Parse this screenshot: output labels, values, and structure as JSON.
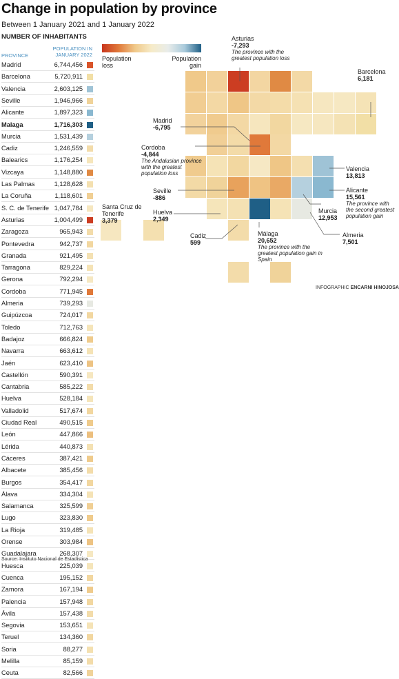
{
  "header": {
    "title": "Change in population by province",
    "subtitle": "Between 1 January 2021 and 1 January 2022",
    "section": "NUMBER OF INHABITANTS"
  },
  "chart_data": [
    {
      "type": "table",
      "columns": [
        "PROVINCE",
        "POPULATION IN JANUARY 2022"
      ],
      "rows": [
        {
          "province": "Madrid",
          "population": "6,744,456",
          "color": "#d9542a"
        },
        {
          "province": "Barcelona",
          "population": "5,720,911",
          "color": "#f2dfa6"
        },
        {
          "province": "Valencia",
          "population": "2,603,125",
          "color": "#9fc3d6"
        },
        {
          "province": "Seville",
          "population": "1,946,966",
          "color": "#f0d39a"
        },
        {
          "province": "Alicante",
          "population": "1,897,323",
          "color": "#8ab8d0"
        },
        {
          "province": "Malaga",
          "population": "1,716,303",
          "color": "#1f5f86",
          "bold": true
        },
        {
          "province": "Murcia",
          "population": "1,531,439",
          "color": "#b5d0de"
        },
        {
          "province": "Cadiz",
          "population": "1,246,559",
          "color": "#f3dcaa"
        },
        {
          "province": "Balearics",
          "population": "1,176,254",
          "color": "#f6e6bb"
        },
        {
          "province": "Vizcaya",
          "population": "1,148,880",
          "color": "#e08a44"
        },
        {
          "province": "Las Palmas",
          "population": "1,128,628",
          "color": "#f4e0b0"
        },
        {
          "province": "La Coruña",
          "population": "1,118,601",
          "color": "#f0cf94"
        },
        {
          "province": "S. C. de Tenerife",
          "population": "1,047,784",
          "color": "#f6e7c0"
        },
        {
          "province": "Asturias",
          "population": "1,004,499",
          "color": "#cc3d22"
        },
        {
          "province": "Zaragoza",
          "population": "965,943",
          "color": "#f3dcaa"
        },
        {
          "province": "Pontevedra",
          "population": "942,737",
          "color": "#f2d7a0"
        },
        {
          "province": "Granada",
          "population": "921,495",
          "color": "#f4e1b3"
        },
        {
          "province": "Tarragona",
          "population": "829,224",
          "color": "#f5e3b6"
        },
        {
          "province": "Gerona",
          "population": "792,294",
          "color": "#f6e8c2"
        },
        {
          "province": "Cordoba",
          "population": "771,945",
          "color": "#e0793a"
        },
        {
          "province": "Almeria",
          "population": "739,293",
          "color": "#e7e9e2"
        },
        {
          "province": "Guipúzcoa",
          "population": "724,017",
          "color": "#f2d7a0"
        },
        {
          "province": "Toledo",
          "population": "712,763",
          "color": "#f5e5ba"
        },
        {
          "province": "Badajoz",
          "population": "666,824",
          "color": "#efcb8c"
        },
        {
          "province": "Navarra",
          "population": "663,612",
          "color": "#f5e3b6"
        },
        {
          "province": "Jaén",
          "population": "623,410",
          "color": "#edc383"
        },
        {
          "province": "Castellón",
          "population": "590,391",
          "color": "#f6e7c0"
        },
        {
          "province": "Cantabria",
          "population": "585,222",
          "color": "#f3dcaa"
        },
        {
          "province": "Huelva",
          "population": "528,184",
          "color": "#f5e5ba"
        },
        {
          "province": "Valladolid",
          "population": "517,674",
          "color": "#f2d7a0"
        },
        {
          "province": "Ciudad Real",
          "population": "490,515",
          "color": "#efcb8c"
        },
        {
          "province": "León",
          "population": "447,866",
          "color": "#ecbf7e"
        },
        {
          "province": "Lérida",
          "population": "440,873",
          "color": "#f4e1b3"
        },
        {
          "province": "Cáceres",
          "population": "387,421",
          "color": "#efcb8c"
        },
        {
          "province": "Albacete",
          "population": "385,456",
          "color": "#f3dcaa"
        },
        {
          "province": "Burgos",
          "population": "354,417",
          "color": "#f2d7a0"
        },
        {
          "province": "Álava",
          "population": "334,304",
          "color": "#f5e3b6"
        },
        {
          "province": "Salamanca",
          "population": "325,599",
          "color": "#f0cf94"
        },
        {
          "province": "Lugo",
          "population": "323,830",
          "color": "#efcb8c"
        },
        {
          "province": "La Rioja",
          "population": "319,485",
          "color": "#f5e3b6"
        },
        {
          "province": "Orense",
          "population": "303,984",
          "color": "#edc383"
        },
        {
          "province": "Guadalajara",
          "population": "268,307",
          "color": "#f6e8c2"
        },
        {
          "province": "Huesca",
          "population": "225,039",
          "color": "#f5e5ba"
        },
        {
          "province": "Cuenca",
          "population": "195,152",
          "color": "#f2d7a0"
        },
        {
          "province": "Zamora",
          "population": "167,194",
          "color": "#efcb8c"
        },
        {
          "province": "Palencia",
          "population": "157,948",
          "color": "#f2d7a0"
        },
        {
          "province": "Ávila",
          "population": "157,438",
          "color": "#f3dcaa"
        },
        {
          "province": "Segovia",
          "population": "153,651",
          "color": "#f5e3b6"
        },
        {
          "province": "Teruel",
          "population": "134,360",
          "color": "#f2d7a0"
        },
        {
          "province": "Soria",
          "population": "88,277",
          "color": "#f4e0b0"
        },
        {
          "province": "Melilla",
          "population": "85,159",
          "color": "#f3dcaa"
        },
        {
          "province": "Ceuta",
          "population": "82,566",
          "color": "#f0d39a"
        }
      ]
    },
    {
      "type": "heatmap",
      "legend": {
        "loss_label": "Population loss",
        "gain_label": "Population gain",
        "colors": [
          "#c8361d",
          "#e0793a",
          "#f0c98a",
          "#f6ebc8",
          "#e8ecea",
          "#a9cadb",
          "#1f5f86"
        ]
      },
      "grid": [
        {
          "col": 4,
          "row": 0,
          "color": "#f0c98a"
        },
        {
          "col": 5,
          "row": 0,
          "color": "#f2d19a"
        },
        {
          "col": 6,
          "row": 0,
          "color": "#cc3d22"
        },
        {
          "col": 7,
          "row": 0,
          "color": "#f3d6a2"
        },
        {
          "col": 8,
          "row": 0,
          "color": "#e08a44"
        },
        {
          "col": 9,
          "row": 0,
          "color": "#f3d9a6"
        },
        {
          "col": 4,
          "row": 1,
          "color": "#f1cd92"
        },
        {
          "col": 5,
          "row": 1,
          "color": "#f3d8a4"
        },
        {
          "col": 6,
          "row": 1,
          "color": "#efc686"
        },
        {
          "col": 7,
          "row": 1,
          "color": "#f3d9a6"
        },
        {
          "col": 8,
          "row": 1,
          "color": "#f4dca9"
        },
        {
          "col": 9,
          "row": 1,
          "color": "#f5e1b3"
        },
        {
          "col": 10,
          "row": 1,
          "color": "#f6e7c0"
        },
        {
          "col": 11,
          "row": 1,
          "color": "#f6e8c2"
        },
        {
          "col": 12,
          "row": 1,
          "color": "#f5e3b6"
        },
        {
          "col": 4,
          "row": 2,
          "color": "#f2d29c"
        },
        {
          "col": 5,
          "row": 2,
          "color": "#f0cb8e"
        },
        {
          "col": 6,
          "row": 2,
          "color": "#f3d8a4"
        },
        {
          "col": 7,
          "row": 2,
          "color": "#f6e6be"
        },
        {
          "col": 8,
          "row": 2,
          "color": "#f2d7a0"
        },
        {
          "col": 9,
          "row": 2,
          "color": "#f6e8c2"
        },
        {
          "col": 10,
          "row": 2,
          "color": "#f6e7c0"
        },
        {
          "col": 11,
          "row": 2,
          "color": "#f4e2b4"
        },
        {
          "col": 12,
          "row": 2,
          "color": "#f2dfa6"
        },
        {
          "col": 5,
          "row": 3,
          "color": "#f1cf96"
        },
        {
          "col": 6,
          "row": 3,
          "color": "#f3dba8"
        },
        {
          "col": 7,
          "row": 3,
          "color": "#e0793a"
        },
        {
          "col": 8,
          "row": 3,
          "color": "#f3d8a4"
        },
        {
          "col": 4,
          "row": 4,
          "color": "#f0cb8e"
        },
        {
          "col": 5,
          "row": 4,
          "color": "#f5e3b6"
        },
        {
          "col": 6,
          "row": 4,
          "color": "#f2d7a0"
        },
        {
          "col": 7,
          "row": 4,
          "color": "#f6e8c4"
        },
        {
          "col": 8,
          "row": 4,
          "color": "#efc686"
        },
        {
          "col": 9,
          "row": 4,
          "color": "#f4dfb0"
        },
        {
          "col": 10,
          "row": 4,
          "color": "#9fc3d6"
        },
        {
          "col": 4,
          "row": 5,
          "color": "#f3daa6"
        },
        {
          "col": 5,
          "row": 5,
          "color": "#f0d39a"
        },
        {
          "col": 6,
          "row": 5,
          "color": "#e8a25c"
        },
        {
          "col": 7,
          "row": 5,
          "color": "#efc383"
        },
        {
          "col": 8,
          "row": 5,
          "color": "#e9a965"
        },
        {
          "col": 9,
          "row": 5,
          "color": "#b5d0de"
        },
        {
          "col": 10,
          "row": 5,
          "color": "#8ab8d0"
        },
        {
          "col": 5,
          "row": 6,
          "color": "#f5e5ba"
        },
        {
          "col": 6,
          "row": 6,
          "color": "#f4e1b3"
        },
        {
          "col": 7,
          "row": 6,
          "color": "#1f5f86"
        },
        {
          "col": 8,
          "row": 6,
          "color": "#f5e3b6"
        },
        {
          "col": 9,
          "row": 6,
          "color": "#e7e9e2"
        },
        {
          "col": 6,
          "row": 7,
          "color": "#f3dcaa"
        },
        {
          "col": 0,
          "row": 7,
          "color": "#f6e7c0"
        },
        {
          "col": 2,
          "row": 7,
          "color": "#f4e0b0"
        },
        {
          "col": 6,
          "row": 9,
          "color": "#f3dcaa"
        },
        {
          "col": 8,
          "row": 9,
          "color": "#f0d39a"
        }
      ]
    }
  ],
  "annotations": {
    "asturias": {
      "name": "Asturias",
      "value": "-7,293",
      "note": "The province with the greatest population loss"
    },
    "barcelona": {
      "name": "Barcelona",
      "value": "6,181"
    },
    "madrid": {
      "name": "Madrid",
      "value": "-6,795"
    },
    "cordoba": {
      "name": "Cordoba",
      "value": "-4,844",
      "note": "The Andalusian province with the greatest population loss"
    },
    "seville": {
      "name": "Seville",
      "value": "-886"
    },
    "huelva": {
      "name": "Huelva",
      "value": "2,349"
    },
    "tenerife": {
      "name": "Santa Cruz de Tenerife",
      "value": "3,379"
    },
    "cadiz": {
      "name": "Cadiz",
      "value": "599"
    },
    "malaga": {
      "name": "Málaga",
      "value": "20,652",
      "note": "The province with the greatest population gain in Spain"
    },
    "murcia": {
      "name": "Murcia",
      "value": "12,953"
    },
    "almeria": {
      "name": "Almeria",
      "value": "7,501"
    },
    "valencia": {
      "name": "Valencia",
      "value": "13,813"
    },
    "alicante": {
      "name": "Alicante",
      "value": "15,561",
      "note": "The province with the second greatest population gain"
    }
  },
  "credit": {
    "prefix": "INFOGRAPHIC ",
    "author": "ENCARNI HINOJOSA"
  },
  "source": "Source: Instituto Nacional de Estadística"
}
